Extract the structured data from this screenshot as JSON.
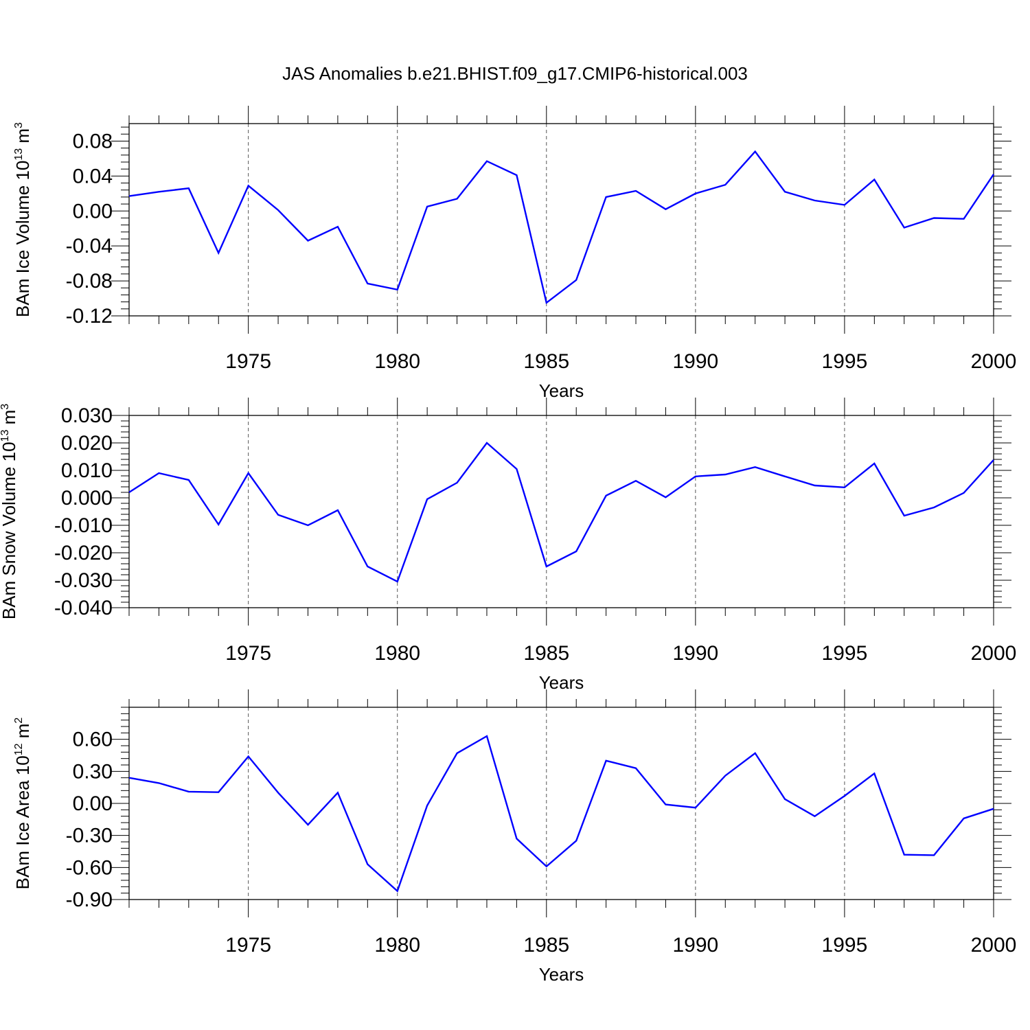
{
  "figure_title": "JAS Anomalies b.e21.BHIST.f09_g17.CMIP6-historical.003",
  "line_color": "#0000ff",
  "chart_data": [
    {
      "type": "line",
      "title": "JAS Anomalies b.e21.BHIST.f09_g17.CMIP6-historical.003",
      "ylabel": "BAm Ice Volume 10",
      "ylabel_sup": "13",
      "ylabel_unit": " m",
      "ylabel_unit_sup": "3",
      "xlabel": "Years",
      "xlim": [
        1971,
        2000
      ],
      "ylim": [
        -0.12,
        0.1
      ],
      "xticks": [
        "1975",
        "1980",
        "1985",
        "1990",
        "1995",
        "2000"
      ],
      "yticks": [
        "-0.12",
        "-0.08",
        "-0.04",
        "0.00",
        "0.04",
        "0.08"
      ],
      "grid": "vertical dashed at labeled years",
      "series": [
        {
          "x": [
            1971,
            1972,
            1973,
            1974,
            1975,
            1976,
            1977,
            1978,
            1979,
            1980,
            1981,
            1982,
            1983,
            1984,
            1985,
            1986,
            1987,
            1988,
            1989,
            1990,
            1991,
            1992,
            1993,
            1994,
            1995,
            1996,
            1997,
            1998,
            1999,
            2000
          ],
          "values": [
            0.017,
            0.022,
            0.026,
            -0.048,
            0.029,
            0.001,
            -0.034,
            -0.018,
            -0.083,
            -0.09,
            0.005,
            0.014,
            0.057,
            0.041,
            -0.105,
            -0.079,
            0.016,
            0.023,
            0.002,
            0.02,
            0.03,
            0.068,
            0.022,
            0.012,
            0.007,
            0.036,
            -0.019,
            -0.008,
            -0.009,
            0.042
          ]
        }
      ]
    },
    {
      "type": "line",
      "ylabel": "BAm Snow Volume 10",
      "ylabel_sup": "13",
      "ylabel_unit": " m",
      "ylabel_unit_sup": "3",
      "xlabel": "Years",
      "xlim": [
        1971,
        2000
      ],
      "ylim": [
        -0.04,
        0.03
      ],
      "xticks": [
        "1975",
        "1980",
        "1985",
        "1990",
        "1995",
        "2000"
      ],
      "yticks": [
        "-0.040",
        "-0.030",
        "-0.020",
        "-0.010",
        "0.000",
        "0.010",
        "0.020",
        "0.030"
      ],
      "grid": "vertical dashed at labeled years",
      "series": [
        {
          "x": [
            1971,
            1972,
            1973,
            1974,
            1975,
            1976,
            1977,
            1978,
            1979,
            1980,
            1981,
            1982,
            1983,
            1984,
            1985,
            1986,
            1987,
            1988,
            1989,
            1990,
            1991,
            1992,
            1993,
            1994,
            1995,
            1996,
            1997,
            1998,
            1999,
            2000
          ],
          "values": [
            0.002,
            0.009,
            0.0065,
            -0.0097,
            0.009,
            -0.0062,
            -0.01,
            -0.0045,
            -0.025,
            -0.0305,
            -0.0005,
            0.0055,
            0.02,
            0.0105,
            -0.025,
            -0.0195,
            0.0008,
            0.0062,
            0.0002,
            0.0078,
            0.0085,
            0.0112,
            0.0078,
            0.0045,
            0.0038,
            0.0125,
            -0.0065,
            -0.0035,
            0.0018,
            0.0138
          ]
        }
      ]
    },
    {
      "type": "line",
      "ylabel": "BAm Ice Area 10",
      "ylabel_sup": "12",
      "ylabel_unit": " m",
      "ylabel_unit_sup": "2",
      "xlabel": "Years",
      "xlim": [
        1971,
        2000
      ],
      "ylim": [
        -0.9,
        0.9
      ],
      "xticks": [
        "1975",
        "1980",
        "1985",
        "1990",
        "1995",
        "2000"
      ],
      "yticks": [
        "-0.90",
        "-0.60",
        "-0.30",
        "0.00",
        "0.30",
        "0.60"
      ],
      "grid": "vertical dashed at labeled years",
      "series": [
        {
          "x": [
            1971,
            1972,
            1973,
            1974,
            1975,
            1976,
            1977,
            1978,
            1979,
            1980,
            1981,
            1982,
            1983,
            1984,
            1985,
            1986,
            1987,
            1988,
            1989,
            1990,
            1991,
            1992,
            1993,
            1994,
            1995,
            1996,
            1997,
            1998,
            1999,
            2000
          ],
          "values": [
            0.24,
            0.19,
            0.11,
            0.105,
            0.44,
            0.1,
            -0.2,
            0.1,
            -0.57,
            -0.82,
            -0.02,
            0.47,
            0.63,
            -0.33,
            -0.59,
            -0.35,
            0.4,
            0.33,
            -0.01,
            -0.04,
            0.26,
            0.47,
            0.04,
            -0.12,
            0.07,
            0.28,
            -0.48,
            -0.485,
            -0.14,
            -0.05
          ]
        }
      ]
    }
  ]
}
